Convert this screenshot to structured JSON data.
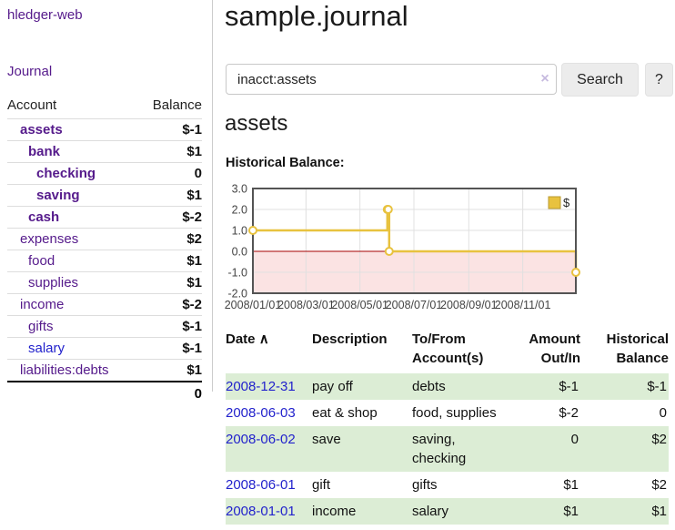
{
  "app": {
    "brand": "hledger-web",
    "nav": {
      "journal": "Journal"
    }
  },
  "colors": {
    "link_purple": "#551a8b",
    "link_blue": "#2222cc",
    "negative_strong": "#8b1721",
    "negative_muted": "#bd7f7f",
    "row_stripe_green": "#dcedd5"
  },
  "sidebar": {
    "columns": {
      "account": "Account",
      "balance": "Balance"
    },
    "rows": [
      {
        "account": "assets",
        "balance": "$-1",
        "level": 1,
        "matched": true,
        "neg": "strong"
      },
      {
        "account": "bank",
        "balance": "$1",
        "level": 2,
        "matched": true,
        "neg": "none"
      },
      {
        "account": "checking",
        "balance": "0",
        "level": 3,
        "matched": true,
        "neg": "none"
      },
      {
        "account": "saving",
        "balance": "$1",
        "level": 3,
        "matched": true,
        "neg": "none"
      },
      {
        "account": "cash",
        "balance": "$-2",
        "level": 2,
        "matched": true,
        "neg": "strong"
      },
      {
        "account": "expenses",
        "balance": "$2",
        "level": 1,
        "matched": false,
        "neg": "none"
      },
      {
        "account": "food",
        "balance": "$1",
        "level": 2,
        "matched": false,
        "neg": "none"
      },
      {
        "account": "supplies",
        "balance": "$1",
        "level": 2,
        "matched": false,
        "neg": "none"
      },
      {
        "account": "income",
        "balance": "$-2",
        "level": 1,
        "matched": false,
        "neg": "muted"
      },
      {
        "account": "gifts",
        "balance": "$-1",
        "level": 2,
        "matched": false,
        "neg": "muted"
      },
      {
        "account": "salary",
        "balance": "$-1",
        "level": 2,
        "matched": false,
        "neg": "muted",
        "link_style": "unvisited"
      },
      {
        "account": "liabilities:debts",
        "balance": "$1",
        "level": 1,
        "matched": false,
        "neg": "none"
      }
    ],
    "total": "0"
  },
  "main": {
    "title": "sample.journal",
    "search": {
      "value": "inacct:assets",
      "clear_icon": "×",
      "search_button": "Search",
      "help_button": "?"
    },
    "account_heading": "assets",
    "chart_title": "Historical Balance:"
  },
  "chart_data": {
    "type": "line",
    "step": true,
    "title": "Historical Balance",
    "series": [
      {
        "name": "$",
        "points": [
          {
            "date": "2008-01-01",
            "value": 1
          },
          {
            "date": "2008-06-01",
            "value": 2
          },
          {
            "date": "2008-06-02",
            "value": 2
          },
          {
            "date": "2008-06-03",
            "value": 0
          },
          {
            "date": "2008-12-31",
            "value": -1
          }
        ]
      }
    ],
    "x_range": [
      "2008-01-01",
      "2008-12-31"
    ],
    "ylim": [
      -2,
      3
    ],
    "yticks": [
      3,
      2,
      1,
      0,
      -1,
      -2
    ],
    "ytick_labels": [
      "3.0",
      "2.0",
      "1.0",
      "0.0",
      "-1.0",
      "-2.0"
    ],
    "xticks": [
      {
        "date": "2008-01-01",
        "label": "2008/01/01"
      },
      {
        "date": "2008-03-01",
        "label": "2008/03/01"
      },
      {
        "date": "2008-05-01",
        "label": "2008/05/01"
      },
      {
        "date": "2008-07-01",
        "label": "2008/07/01"
      },
      {
        "date": "2008-09-01",
        "label": "2008/09/01"
      },
      {
        "date": "2008-11-01",
        "label": "2008/11/01"
      }
    ],
    "legend": {
      "label": "$",
      "position": "top-right"
    },
    "grid": true,
    "colors": {
      "line": "#e8c23f",
      "legend_border": "#b89a30",
      "grid": "#e0e0e0",
      "border": "#545454",
      "zero_line": "#a40000",
      "negative_region": "#fbe3e3",
      "tick_text": "#444444"
    }
  },
  "register": {
    "sort_icon": "∧",
    "headers": {
      "date": "Date",
      "description": "Description",
      "accounts": "To/From Account(s)",
      "amount": "Amount Out/In",
      "balance": "Historical Balance"
    },
    "rows": [
      {
        "date": "2008-12-31",
        "description": "pay off",
        "accounts": "debts",
        "amount": "$-1",
        "amount_negative": true,
        "balance": "$-1",
        "balance_negative": true
      },
      {
        "date": "2008-06-03",
        "description": "eat & shop",
        "accounts": "food, supplies",
        "amount": "$-2",
        "amount_negative": true,
        "balance": "0",
        "balance_negative": false
      },
      {
        "date": "2008-06-02",
        "description": "save",
        "accounts": "saving, checking",
        "amount": "0",
        "amount_negative": false,
        "balance": "$2",
        "balance_negative": false
      },
      {
        "date": "2008-06-01",
        "description": "gift",
        "accounts": "gifts",
        "amount": "$1",
        "amount_negative": false,
        "balance": "$2",
        "balance_negative": false
      },
      {
        "date": "2008-01-01",
        "description": "income",
        "accounts": "salary",
        "amount": "$1",
        "amount_negative": false,
        "balance": "$1",
        "balance_negative": false
      }
    ]
  }
}
